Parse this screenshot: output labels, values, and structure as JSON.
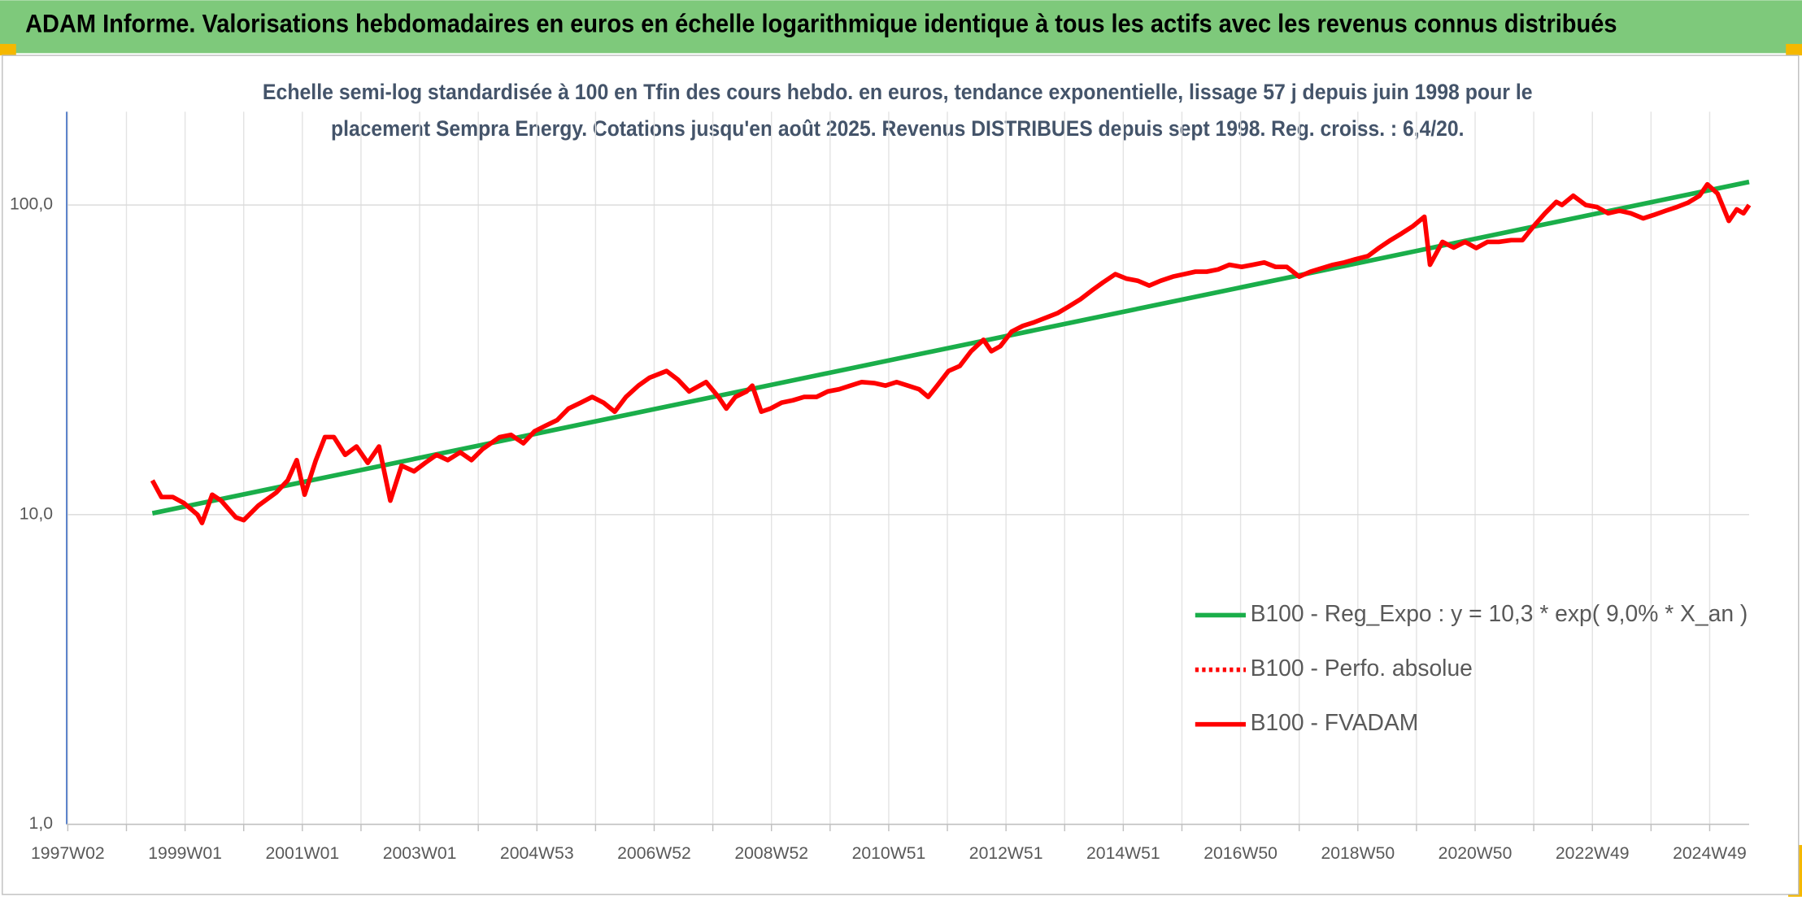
{
  "chart_data": {
    "type": "line",
    "title": "ADAM Informe. Valorisations hebdomadaires en euros en échelle logarithmique identique à tous les actifs avec les revenus connus distribués",
    "subtitle": [
      "Echelle semi-log standardisée à 100 en Tfin des cours hebdo. en euros, tendance exponentielle, lissage 57 j depuis juin 1998 pour le",
      "placement Sempra Energy. Cotations jusqu'en août 2025. Revenus DISTRIBUES depuis sept 1998. Reg. croiss. : 6,4/20."
    ],
    "ylog": true,
    "ylim": [
      1,
      200
    ],
    "yticks": [
      {
        "value": 1,
        "label": "1,0"
      },
      {
        "value": 10,
        "label": "10,0"
      },
      {
        "value": 100,
        "label": "100,0"
      }
    ],
    "xlim": [
      0,
      1491
    ],
    "xticks": [
      {
        "value": 0,
        "label": "1997W02"
      },
      {
        "value": 104,
        "label": "1999W01"
      },
      {
        "value": 208,
        "label": "2001W01"
      },
      {
        "value": 312,
        "label": "2003W01"
      },
      {
        "value": 416,
        "label": "2004W53"
      },
      {
        "value": 520,
        "label": "2006W52"
      },
      {
        "value": 624,
        "label": "2008W52"
      },
      {
        "value": 728,
        "label": "2010W51"
      },
      {
        "value": 832,
        "label": "2012W51"
      },
      {
        "value": 936,
        "label": "2014W51"
      },
      {
        "value": 1040,
        "label": "2016W50"
      },
      {
        "value": 1144,
        "label": "2018W50"
      },
      {
        "value": 1248,
        "label": "2020W50"
      },
      {
        "value": 1352,
        "label": "2022W49"
      },
      {
        "value": 1456,
        "label": "2024W49"
      }
    ],
    "xminor": [
      52,
      156,
      260,
      364,
      468,
      572,
      676,
      780,
      884,
      988,
      1092,
      1196,
      1300,
      1404
    ],
    "grid": true,
    "legend": "lower right",
    "series": [
      {
        "name": "B100 - Reg_Expo : y = 10,3 * exp( 9,0% *  X_an )",
        "color": "#1aae4a",
        "x": [
          75,
          1491
        ],
        "values": [
          10.1,
          118.7
        ]
      },
      {
        "name": "B100 - Perfo. absolue",
        "color": "#ff0000",
        "dash": true
      },
      {
        "name": "B100 - FVADAM",
        "color": "#ff0000",
        "x": [
          75,
          83,
          93,
          103,
          115,
          119,
          128,
          136,
          149,
          156,
          169,
          185,
          195,
          203,
          210,
          220,
          228,
          236,
          246,
          256,
          266,
          276,
          286,
          296,
          307,
          317,
          327,
          337,
          348,
          358,
          368,
          383,
          393,
          404,
          414,
          424,
          434,
          444,
          455,
          465,
          475,
          485,
          495,
          506,
          516,
          531,
          541,
          551,
          566,
          577,
          584,
          592,
          602,
          607,
          615,
          623,
          633,
          643,
          653,
          664,
          674,
          684,
          694,
          704,
          715,
          725,
          735,
          745,
          755,
          763,
          771,
          781,
          791,
          801,
          812,
          819,
          827,
          837,
          847,
          857,
          867,
          878,
          888,
          898,
          908,
          918,
          929,
          939,
          949,
          959,
          969,
          980,
          990,
          1000,
          1010,
          1020,
          1030,
          1041,
          1051,
          1061,
          1071,
          1081,
          1092,
          1102,
          1112,
          1122,
          1132,
          1142,
          1153,
          1163,
          1173,
          1183,
          1193,
          1203,
          1208,
          1219,
          1229,
          1239,
          1249,
          1259,
          1269,
          1280,
          1290,
          1300,
          1310,
          1320,
          1325,
          1335,
          1346,
          1356,
          1366,
          1376,
          1386,
          1397,
          1407,
          1417,
          1427,
          1437,
          1447,
          1454,
          1463,
          1473,
          1480,
          1486,
          1491
        ],
        "values": [
          12.9,
          11.4,
          11.4,
          10.9,
          10.0,
          9.4,
          11.6,
          11.1,
          9.8,
          9.6,
          10.7,
          11.8,
          12.9,
          15.0,
          11.6,
          15.0,
          17.8,
          17.8,
          15.6,
          16.6,
          14.7,
          16.6,
          11.1,
          14.4,
          13.8,
          14.7,
          15.6,
          15.0,
          15.9,
          15.0,
          16.3,
          17.8,
          18.1,
          17.0,
          18.6,
          19.4,
          20.2,
          22.0,
          23.0,
          24.0,
          23.0,
          21.5,
          24.0,
          26.1,
          27.7,
          29.1,
          27.3,
          25.0,
          26.8,
          24.0,
          22.0,
          24.0,
          25.0,
          26.1,
          21.5,
          22.0,
          23.0,
          23.4,
          24.0,
          24.0,
          25.0,
          25.4,
          26.1,
          26.8,
          26.6,
          26.1,
          26.8,
          26.1,
          25.4,
          24.0,
          26.1,
          29.1,
          30.2,
          33.7,
          36.7,
          33.7,
          35.0,
          39.0,
          40.7,
          41.8,
          43.2,
          44.8,
          47.1,
          49.6,
          52.9,
          56.2,
          59.8,
          57.8,
          56.9,
          54.9,
          56.9,
          58.7,
          59.8,
          60.9,
          60.9,
          61.9,
          64.1,
          63.1,
          64.1,
          65.2,
          63.1,
          63.1,
          58.7,
          60.9,
          62.5,
          64.1,
          65.2,
          66.8,
          68.4,
          72.8,
          77.0,
          81.0,
          85.5,
          91.6,
          64.1,
          76.0,
          72.8,
          76.0,
          72.6,
          76.0,
          76.0,
          77.0,
          77.0,
          85.5,
          94.0,
          102.3,
          100.0,
          107.1,
          100.0,
          98.5,
          94.0,
          95.8,
          94.0,
          90.5,
          93.0,
          95.8,
          98.5,
          101.8,
          107.1,
          116.6,
          108.8,
          88.8,
          96.8,
          94.0,
          100.0
        ]
      }
    ]
  }
}
